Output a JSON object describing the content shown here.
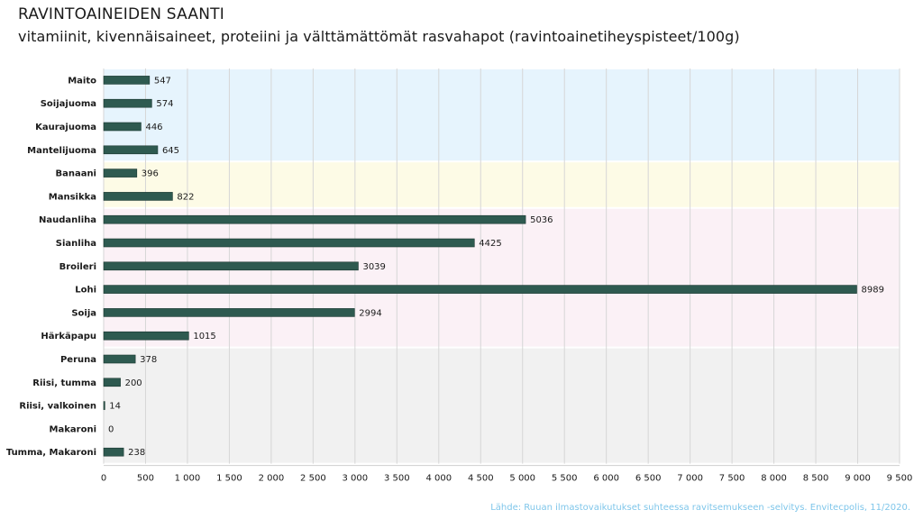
{
  "chart_data": {
    "type": "bar",
    "orientation": "horizontal",
    "title": "RAVINTOAINEIDEN SAANTI",
    "subtitle": "vitamiinit, kivennäisaineet, proteiini ja välttämättömät rasvahapot (ravintoainetiheyspisteet/100g)",
    "categories": [
      "Maito",
      "Soijajuoma",
      "Kaurajuoma",
      "Mantelijuoma",
      "Banaani",
      "Mansikka",
      "Naudanliha",
      "Sianliha",
      "Broileri",
      "Lohi",
      "Soija",
      "Härkäpapu",
      "Peruna",
      "Riisi, tumma",
      "Riisi, valkoinen",
      "Makaroni",
      "Tumma, Makaroni"
    ],
    "values": [
      547,
      574,
      446,
      645,
      396,
      822,
      5036,
      4425,
      3039,
      8989,
      2994,
      1015,
      378,
      200,
      14,
      0,
      238
    ],
    "value_labels": [
      "547",
      "574",
      "446",
      "645",
      "396",
      "822",
      "5036",
      "4425",
      "3039",
      "8989",
      "2994",
      "1015",
      "378",
      "200",
      "14",
      "0",
      "238"
    ],
    "groups": [
      {
        "start": 0,
        "end": 3,
        "color": "#e6f4fd"
      },
      {
        "start": 4,
        "end": 5,
        "color": "#fdfbe6"
      },
      {
        "start": 6,
        "end": 11,
        "color": "#fbf1f6"
      },
      {
        "start": 12,
        "end": 16,
        "color": "#f1f1f1"
      }
    ],
    "xlim": [
      0,
      9500
    ],
    "xticks": [
      0,
      500,
      1000,
      1500,
      2000,
      2500,
      3000,
      3500,
      4000,
      4500,
      5000,
      5500,
      6000,
      6500,
      7000,
      7500,
      8000,
      8500,
      9000,
      9500
    ],
    "xtick_labels": [
      "0",
      "500",
      "1 000",
      "1 500",
      "2 000",
      "2 500",
      "3 000",
      "3 500",
      "4 000",
      "4 500",
      "5 000",
      "5 500",
      "6 000",
      "6 500",
      "7 000",
      "7 500",
      "8 000",
      "8 500",
      "9 000",
      "9 500"
    ],
    "bar_color": "#2e5a50",
    "grid": true
  },
  "source": "Lähde: Ruuan ilmastovaikutukset suhteessa ravitsemukseen -selvitys. Envitecpolis, 11/2020."
}
